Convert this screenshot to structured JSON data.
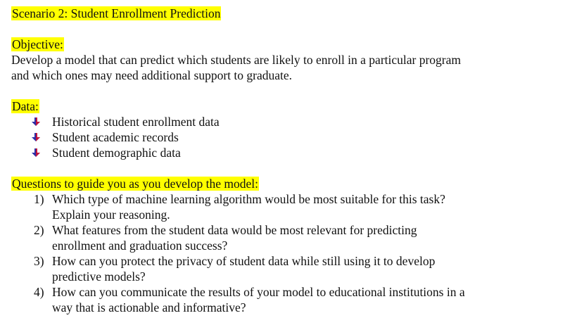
{
  "title": "Scenario 2: Student Enrollment Prediction",
  "objective": {
    "heading": "Objective:",
    "line1": "Develop a model that can predict which students are likely to enroll in a particular program",
    "line2": "and which ones may need additional support to graduate."
  },
  "data_section": {
    "heading": "Data:",
    "bullet_icon": "down-arrow-icon",
    "items": [
      "Historical student enrollment data",
      "Student academic records",
      "Student demographic data"
    ]
  },
  "questions": {
    "heading": "Questions to guide you as you develop the model:",
    "items": [
      {
        "num": "1)",
        "line1": "Which type of machine learning algorithm would be most suitable for this task?",
        "line2": "Explain your reasoning."
      },
      {
        "num": "2)",
        "line1": "What features from the student data would be most relevant for predicting",
        "line2": "enrollment and graduation success?"
      },
      {
        "num": "3)",
        "line1": "How can you protect the privacy of student data while still using it to develop",
        "line2": "predictive models?"
      },
      {
        "num": "4)",
        "line1": "How can you communicate the results of your model to educational institutions in a",
        "line2": "way that is actionable and informative?"
      }
    ]
  },
  "colors": {
    "highlight": "#ffff00",
    "arrow_primary": "#2b2fa8",
    "arrow_accent": "#c0143c"
  }
}
